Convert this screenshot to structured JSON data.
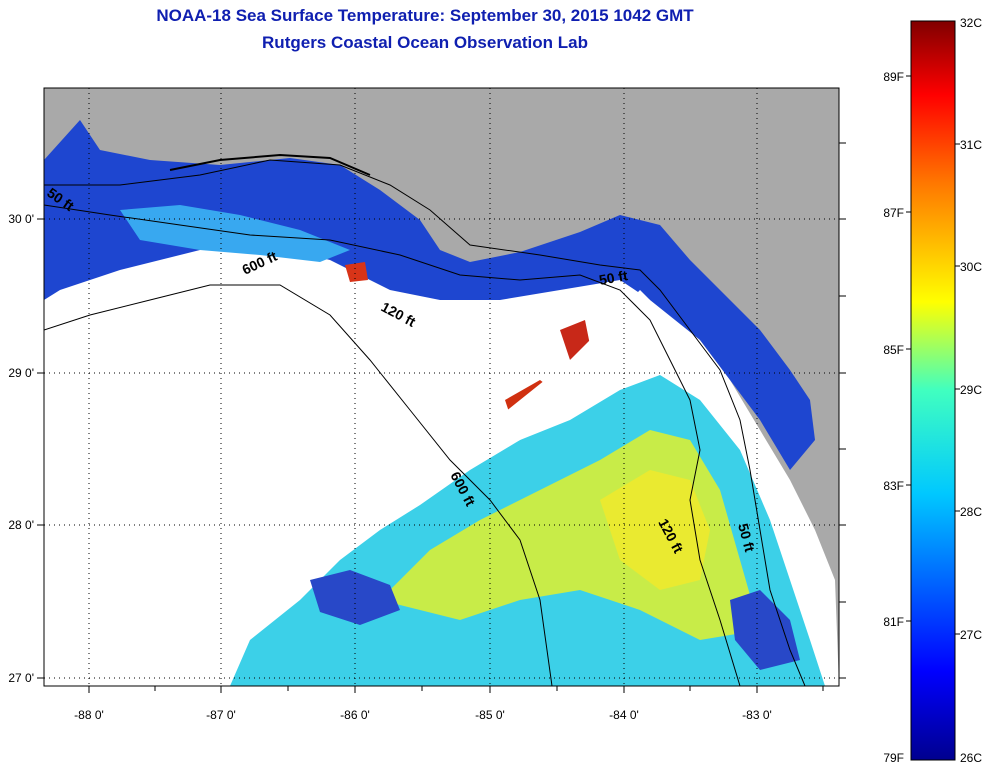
{
  "title": "NOAA-18 Sea Surface Temperature:  September 30, 2015 1042 GMT",
  "subtitle": "Rutgers Coastal Ocean Observation Lab",
  "map": {
    "lon_labels": [
      "-88 0'",
      "-87 0'",
      "-86 0'",
      "-85 0'",
      "-84 0'",
      "-83 0'"
    ],
    "lat_labels": [
      "30 0'",
      "29 0'",
      "28 0'",
      "27 0'"
    ],
    "depth_labels": [
      "600 ft",
      "120 ft",
      "50 ft",
      "600 ft",
      "120 ft",
      "50 ft",
      "50 ft"
    ],
    "colors": {
      "land": "#a9a9a9",
      "cloud": "#ffffff",
      "ocean_cool": "#1a3ccc",
      "ocean_mid": "#2ec8f0",
      "ocean_warm": "#e8ec3c",
      "hot": "#c02010"
    }
  },
  "colorbar": {
    "celsius_labels": [
      "32C",
      "31C",
      "30C",
      "29C",
      "28C",
      "27C",
      "26C"
    ],
    "fahrenheit_labels": [
      "89F",
      "87F",
      "85F",
      "83F",
      "81F",
      "79F"
    ],
    "range_c": [
      26,
      32
    ]
  }
}
